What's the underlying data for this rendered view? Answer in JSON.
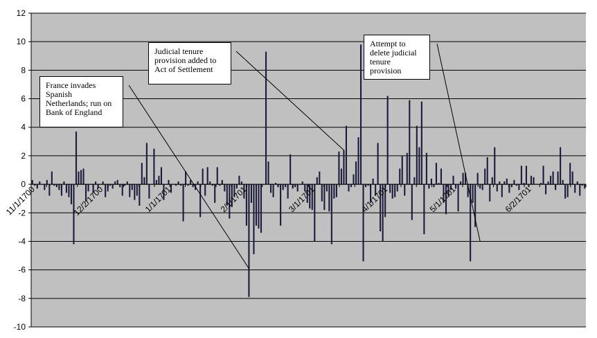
{
  "chart_data": {
    "type": "bar",
    "title": "",
    "xlabel": "",
    "ylabel": "",
    "ylim": [
      -10,
      12
    ],
    "yticks": [
      12,
      10,
      8,
      6,
      4,
      2,
      0,
      -2,
      -4,
      -6,
      -8,
      -10
    ],
    "grid": true,
    "legend": "none",
    "x_tick_labels": [
      "11/1/1700",
      "12/2/1700",
      "1/1/1701",
      "2/1/1701",
      "3/1/1701",
      "4/1/1701",
      "5/1/1701",
      "6/2/1701"
    ],
    "values": [
      0.3,
      -0.1,
      -0.3,
      0.2,
      0,
      -0.4,
      0.3,
      -0.8,
      0.9,
      -0.1,
      -0.2,
      -0.4,
      -0.8,
      0.2,
      -0.6,
      -0.9,
      -1.4,
      -4.2,
      3.7,
      0.9,
      1.0,
      1.1,
      -1.2,
      -0.5,
      0,
      -0.6,
      0.2,
      -0.3,
      0,
      0.2,
      -0.9,
      -0.5,
      -0.1,
      -0.3,
      0.2,
      0.3,
      -0.2,
      -0.8,
      -0.1,
      0.2,
      -0.9,
      -0.4,
      -1.1,
      -0.8,
      -1.5,
      1.5,
      0.5,
      2.9,
      -1.0,
      0,
      2.5,
      0.3,
      0.6,
      1.2,
      -1.1,
      0,
      0.3,
      -0.6,
      0,
      -0.1,
      0.2,
      -0.1,
      -2.6,
      0.9,
      -0.1,
      0.3,
      -0.2,
      -0.4,
      0.2,
      -2.3,
      1.1,
      -0.8,
      1.2,
      0.2,
      -0.1,
      -1.3,
      1.2,
      -0.1,
      0.3,
      -0.5,
      -1.5,
      -2.4,
      -1.6,
      -0.9,
      -0.3,
      0.6,
      0.2,
      -1.0,
      -2.9,
      -7.9,
      -1.3,
      -4.9,
      -2.9,
      -3.1,
      -3.4,
      0,
      9.3,
      1.6,
      -0.6,
      -0.9,
      0.1,
      -0.2,
      -2.9,
      -0.4,
      -0.2,
      -1.0,
      2.1,
      -0.3,
      -0.2,
      -0.5,
      0,
      0.2,
      -0.5,
      -1.3,
      -1.7,
      -1.8,
      -4.0,
      0.5,
      0.9,
      -1.2,
      -1.8,
      -0.5,
      -1.9,
      -4.2,
      -1.0,
      -0.9,
      2.3,
      1.1,
      2.4,
      4.1,
      -0.5,
      -0.2,
      0.7,
      1.6,
      3.3,
      9.8,
      -5.4,
      -0.2,
      -0.1,
      -1.3,
      0.4,
      -0.8,
      2.9,
      -3.3,
      -4.0,
      -2.3,
      6.2,
      -0.6,
      -1.0,
      -0.9,
      -0.5,
      1.1,
      2.0,
      -0.8,
      2.2,
      5.9,
      -2.5,
      0.5,
      4.1,
      2.6,
      5.8,
      -3.5,
      2.2,
      -0.3,
      0.4,
      -0.2,
      1.5,
      0.1,
      1.1,
      -1.3,
      -2.1,
      -0.9,
      -0.4,
      0.6,
      -0.3,
      -1.9,
      0.2,
      0.8,
      0.8,
      -0.9,
      -5.4,
      -1.3,
      -3.0,
      0.8,
      -0.3,
      -0.4,
      1.1,
      1.9,
      -1.2,
      0.5,
      2.6,
      -0.5,
      0.2,
      -0.9,
      0.2,
      0.4,
      -0.6,
      -0.2,
      0.3,
      -0.1,
      -0.4,
      1.3,
      0.1,
      1.3,
      -0.2,
      0.6,
      0.5,
      0,
      0,
      0.1,
      1.3,
      -0.7,
      0.2,
      0.6,
      0.9,
      -0.4,
      0.9,
      2.6,
      0.3,
      -1.0,
      -0.9,
      1.5,
      0.9,
      -0.6,
      0.2,
      -0.8,
      -0.1,
      -0.3
    ]
  },
  "annotations": [
    {
      "text": "France invades\nSpanish\nNetherlands; run on\nBank of England",
      "target_index": 89
    },
    {
      "text": "Judicial tenure\nprovision added to\nAct of Settlement",
      "target_index": 128
    },
    {
      "text": "Attempt to\ndelete judicial\ntenure\nprovision",
      "target_index": 184
    }
  ]
}
